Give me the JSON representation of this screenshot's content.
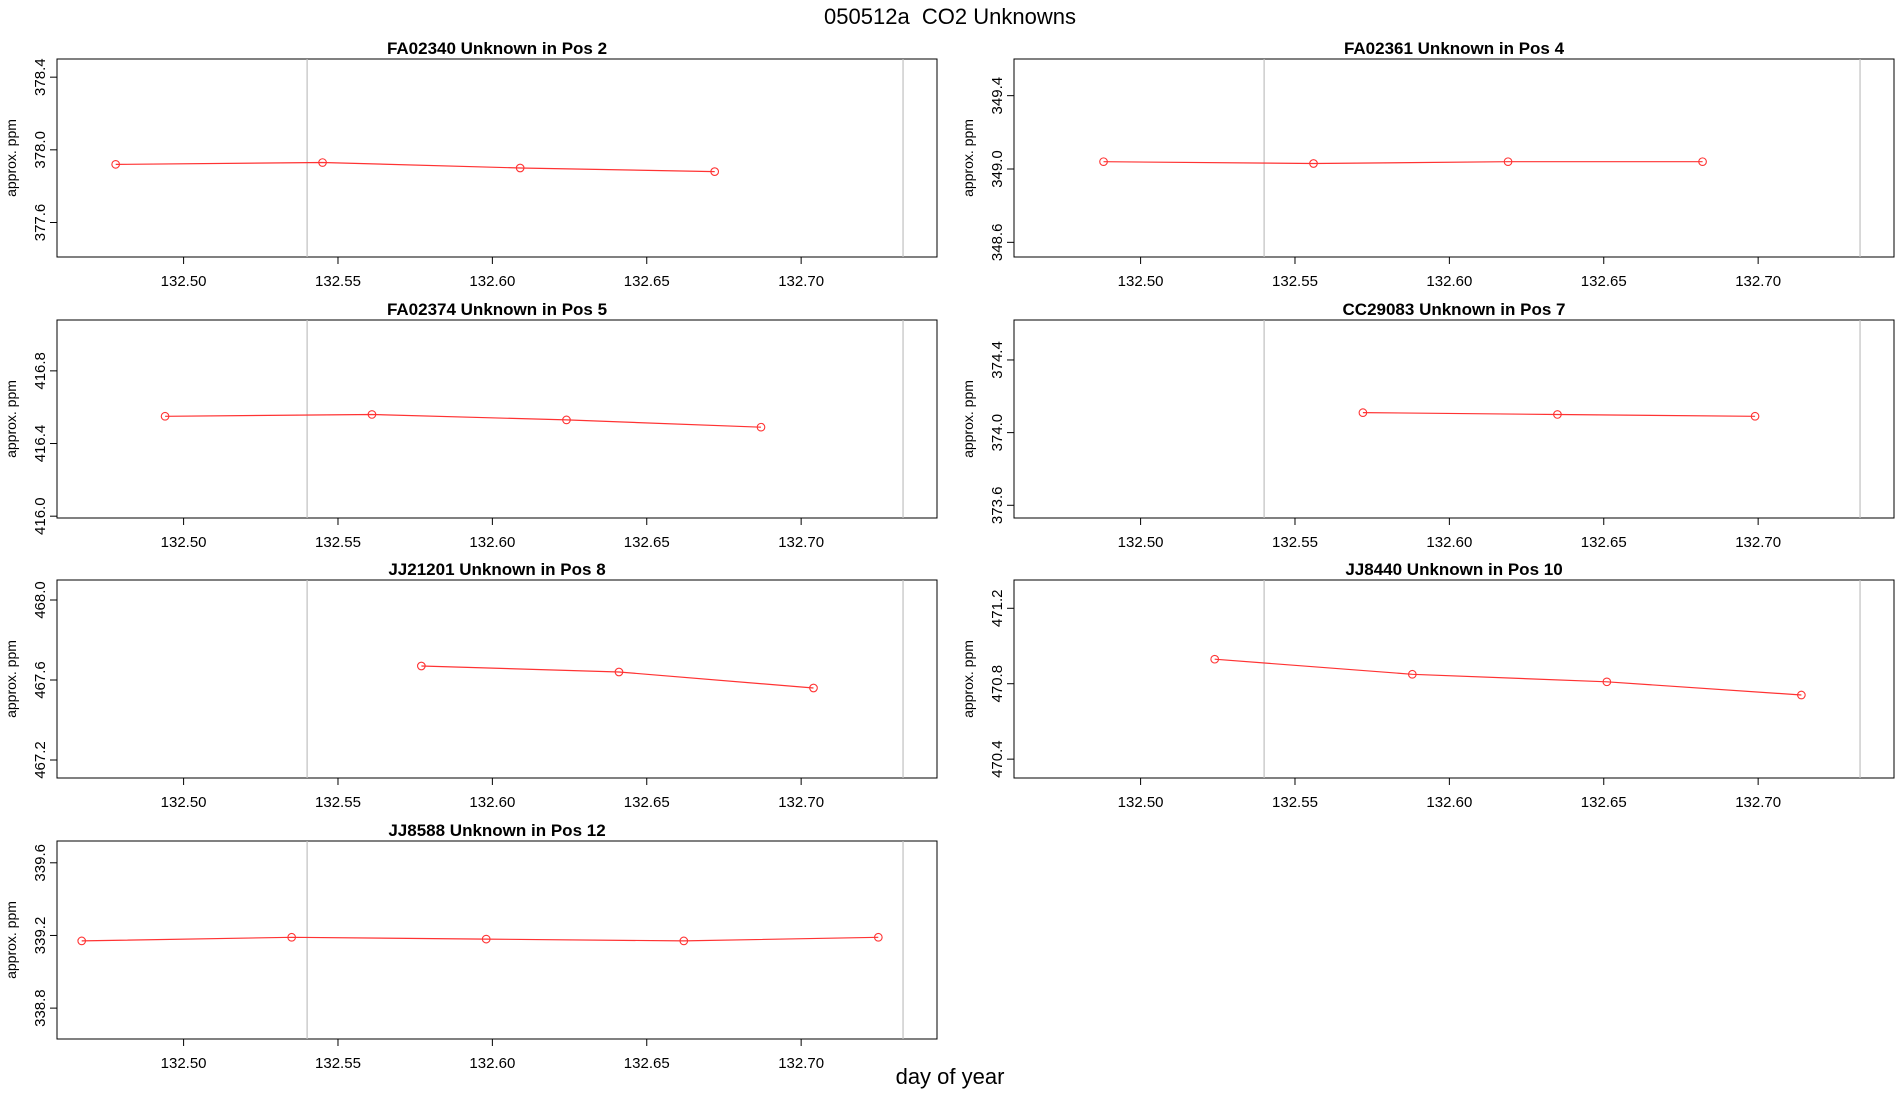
{
  "page": {
    "title": "050512a  CO2 Unknowns",
    "xlabel": "day of year"
  },
  "colors": {
    "series": "#ff3333",
    "refline": "#c0c0c0",
    "axis": "#000000"
  },
  "chart_data": [
    {
      "type": "line",
      "title": "FA02340    Unknown in Pos 2",
      "ylabel": "approx. ppm",
      "xlim": [
        132.459,
        132.744
      ],
      "ylim": [
        377.41,
        378.5
      ],
      "xticks": [
        "132.50",
        "132.55",
        "132.60",
        "132.65",
        "132.70"
      ],
      "yticks": [
        "377.6",
        "378.0",
        "378.4"
      ],
      "reflines": [
        132.54,
        132.733
      ],
      "x": [
        132.478,
        132.545,
        132.609,
        132.672
      ],
      "y": [
        377.92,
        377.93,
        377.9,
        377.88
      ]
    },
    {
      "type": "line",
      "title": "FA02361    Unknown in Pos 4",
      "ylabel": "approx. ppm",
      "xlim": [
        132.459,
        132.744
      ],
      "ylim": [
        348.52,
        349.6
      ],
      "xticks": [
        "132.50",
        "132.55",
        "132.60",
        "132.65",
        "132.70"
      ],
      "yticks": [
        "348.6",
        "349.0",
        "349.4"
      ],
      "reflines": [
        132.54,
        132.733
      ],
      "x": [
        132.488,
        132.556,
        132.619,
        132.682
      ],
      "y": [
        349.04,
        349.03,
        349.04,
        349.04
      ]
    },
    {
      "type": "line",
      "title": "FA02374    Unknown in Pos 5",
      "ylabel": "approx. ppm",
      "xlim": [
        132.459,
        132.744
      ],
      "ylim": [
        415.99,
        417.08
      ],
      "xticks": [
        "132.50",
        "132.55",
        "132.60",
        "132.65",
        "132.70"
      ],
      "yticks": [
        "416.0",
        "416.4",
        "416.8"
      ],
      "reflines": [
        132.54,
        132.733
      ],
      "x": [
        132.494,
        132.561,
        132.624,
        132.687
      ],
      "y": [
        416.55,
        416.56,
        416.53,
        416.49
      ]
    },
    {
      "type": "line",
      "title": "CC29083    Unknown in Pos 7",
      "ylabel": "approx. ppm",
      "xlim": [
        132.459,
        132.744
      ],
      "ylim": [
        373.53,
        374.62
      ],
      "xticks": [
        "132.50",
        "132.55",
        "132.60",
        "132.65",
        "132.70"
      ],
      "yticks": [
        "373.6",
        "374.0",
        "374.4"
      ],
      "reflines": [
        132.54,
        132.733
      ],
      "x": [
        132.572,
        132.635,
        132.699
      ],
      "y": [
        374.11,
        374.1,
        374.09
      ]
    },
    {
      "type": "line",
      "title": "JJ21201    Unknown in Pos 8",
      "ylabel": "approx. ppm",
      "xlim": [
        132.459,
        132.744
      ],
      "ylim": [
        467.11,
        468.1
      ],
      "xticks": [
        "132.50",
        "132.55",
        "132.60",
        "132.65",
        "132.70"
      ],
      "yticks": [
        "467.2",
        "467.6",
        "468.0"
      ],
      "reflines": [
        132.54,
        132.733
      ],
      "x": [
        132.577,
        132.641,
        132.704
      ],
      "y": [
        467.67,
        467.64,
        467.56
      ]
    },
    {
      "type": "line",
      "title": "JJ8440    Unknown in Pos 10",
      "ylabel": "approx. ppm",
      "xlim": [
        132.459,
        132.744
      ],
      "ylim": [
        470.3,
        471.35
      ],
      "xticks": [
        "132.50",
        "132.55",
        "132.60",
        "132.65",
        "132.70"
      ],
      "yticks": [
        "470.4",
        "470.8",
        "471.2"
      ],
      "reflines": [
        132.54,
        132.733
      ],
      "x": [
        132.524,
        132.588,
        132.651,
        132.714
      ],
      "y": [
        470.93,
        470.85,
        470.81,
        470.74
      ]
    },
    {
      "type": "line",
      "title": "JJ8588    Unknown in Pos 12",
      "ylabel": "approx. ppm",
      "xlim": [
        132.459,
        132.744
      ],
      "ylim": [
        338.63,
        339.72
      ],
      "xticks": [
        "132.50",
        "132.55",
        "132.60",
        "132.65",
        "132.70"
      ],
      "yticks": [
        "338.8",
        "339.2",
        "339.6"
      ],
      "reflines": [
        132.54,
        132.733
      ],
      "x": [
        132.467,
        132.535,
        132.598,
        132.662,
        132.725
      ],
      "y": [
        339.17,
        339.19,
        339.18,
        339.17,
        339.19
      ]
    }
  ]
}
